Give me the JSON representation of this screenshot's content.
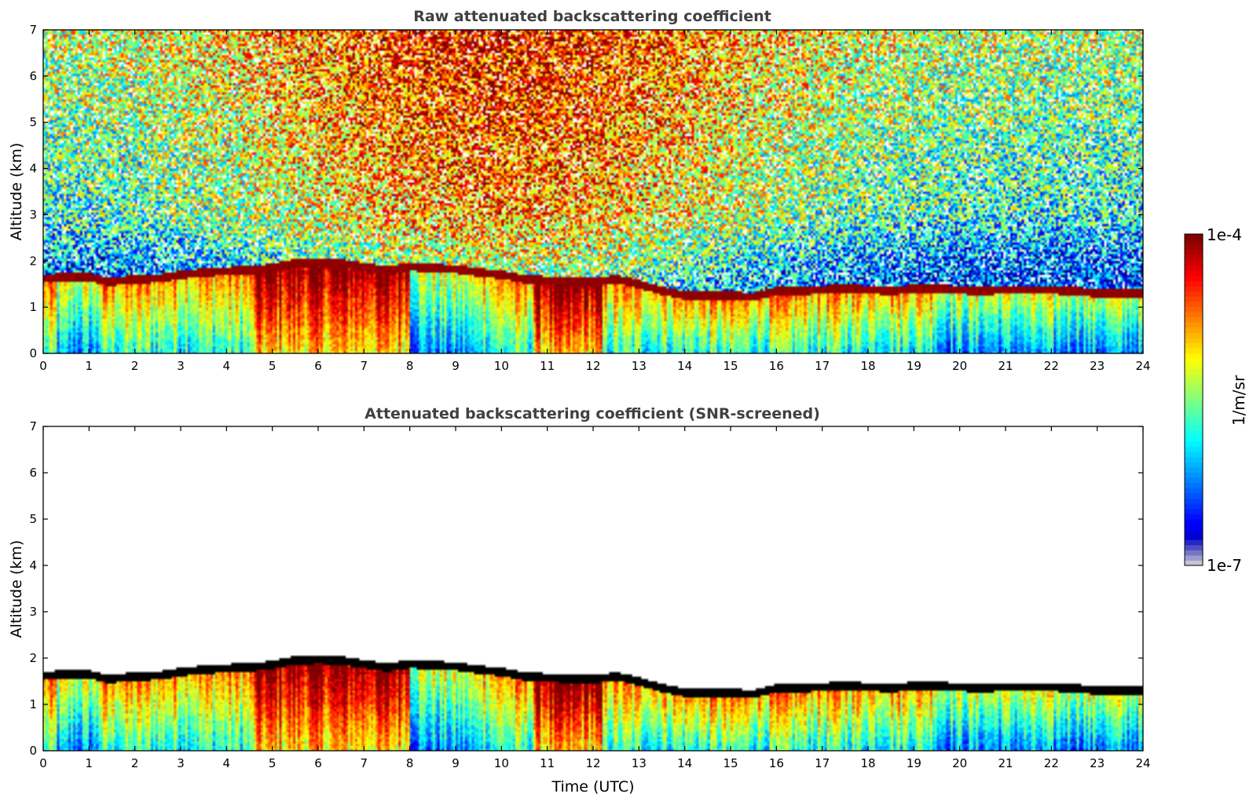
{
  "chart_data": [
    {
      "type": "heatmap",
      "title": "Raw attenuated backscattering coefficient",
      "xlabel": "",
      "ylabel": "Altitude (km)",
      "xlim": [
        0,
        24
      ],
      "ylim": [
        0,
        7
      ],
      "xticks": [
        "0",
        "1",
        "2",
        "3",
        "4",
        "5",
        "6",
        "7",
        "8",
        "9",
        "10",
        "11",
        "12",
        "13",
        "14",
        "15",
        "16",
        "17",
        "18",
        "19",
        "20",
        "21",
        "22",
        "23",
        "24"
      ],
      "yticks": [
        "0",
        "1",
        "2",
        "3",
        "4",
        "5",
        "6",
        "7"
      ],
      "screened": false,
      "layer_top_km": [
        [
          0,
          1.62
        ],
        [
          0.5,
          1.65
        ],
        [
          1,
          1.65
        ],
        [
          1.4,
          1.55
        ],
        [
          2,
          1.6
        ],
        [
          2.5,
          1.62
        ],
        [
          3,
          1.7
        ],
        [
          3.5,
          1.75
        ],
        [
          4,
          1.78
        ],
        [
          4.5,
          1.8
        ],
        [
          5,
          1.85
        ],
        [
          5.5,
          1.95
        ],
        [
          6,
          1.97
        ],
        [
          6.5,
          1.95
        ],
        [
          7,
          1.87
        ],
        [
          7.5,
          1.8
        ],
        [
          8,
          1.87
        ],
        [
          8.5,
          1.85
        ],
        [
          9,
          1.82
        ],
        [
          9.5,
          1.75
        ],
        [
          10,
          1.7
        ],
        [
          10.5,
          1.6
        ],
        [
          11,
          1.58
        ],
        [
          11.5,
          1.55
        ],
        [
          12,
          1.55
        ],
        [
          12.5,
          1.6
        ],
        [
          13,
          1.5
        ],
        [
          13.5,
          1.35
        ],
        [
          14,
          1.25
        ],
        [
          14.5,
          1.25
        ],
        [
          15,
          1.25
        ],
        [
          15.5,
          1.22
        ],
        [
          16,
          1.35
        ],
        [
          16.5,
          1.35
        ],
        [
          17,
          1.38
        ],
        [
          17.5,
          1.4
        ],
        [
          18,
          1.38
        ],
        [
          18.5,
          1.35
        ],
        [
          19,
          1.4
        ],
        [
          19.5,
          1.4
        ],
        [
          20,
          1.37
        ],
        [
          20.5,
          1.35
        ],
        [
          21,
          1.38
        ],
        [
          21.5,
          1.38
        ],
        [
          22,
          1.37
        ],
        [
          22.5,
          1.35
        ],
        [
          23,
          1.3
        ],
        [
          24,
          1.3
        ]
      ]
    },
    {
      "type": "heatmap",
      "title": "Attenuated backscattering coefficient (SNR-screened)",
      "xlabel": "Time (UTC)",
      "ylabel": "Altitude (km)",
      "xlim": [
        0,
        24
      ],
      "ylim": [
        0,
        7
      ],
      "xticks": [
        "0",
        "1",
        "2",
        "3",
        "4",
        "5",
        "6",
        "7",
        "8",
        "9",
        "10",
        "11",
        "12",
        "13",
        "14",
        "15",
        "16",
        "17",
        "18",
        "19",
        "20",
        "21",
        "22",
        "23",
        "24"
      ],
      "yticks": [
        "0",
        "1",
        "2",
        "3",
        "4",
        "5",
        "6",
        "7"
      ],
      "screened": true
    }
  ],
  "colorbar": {
    "label": "1/m/sr",
    "max_label": "1e-4",
    "min_label": "1e-7",
    "colormap": "jet",
    "scale": "log"
  }
}
